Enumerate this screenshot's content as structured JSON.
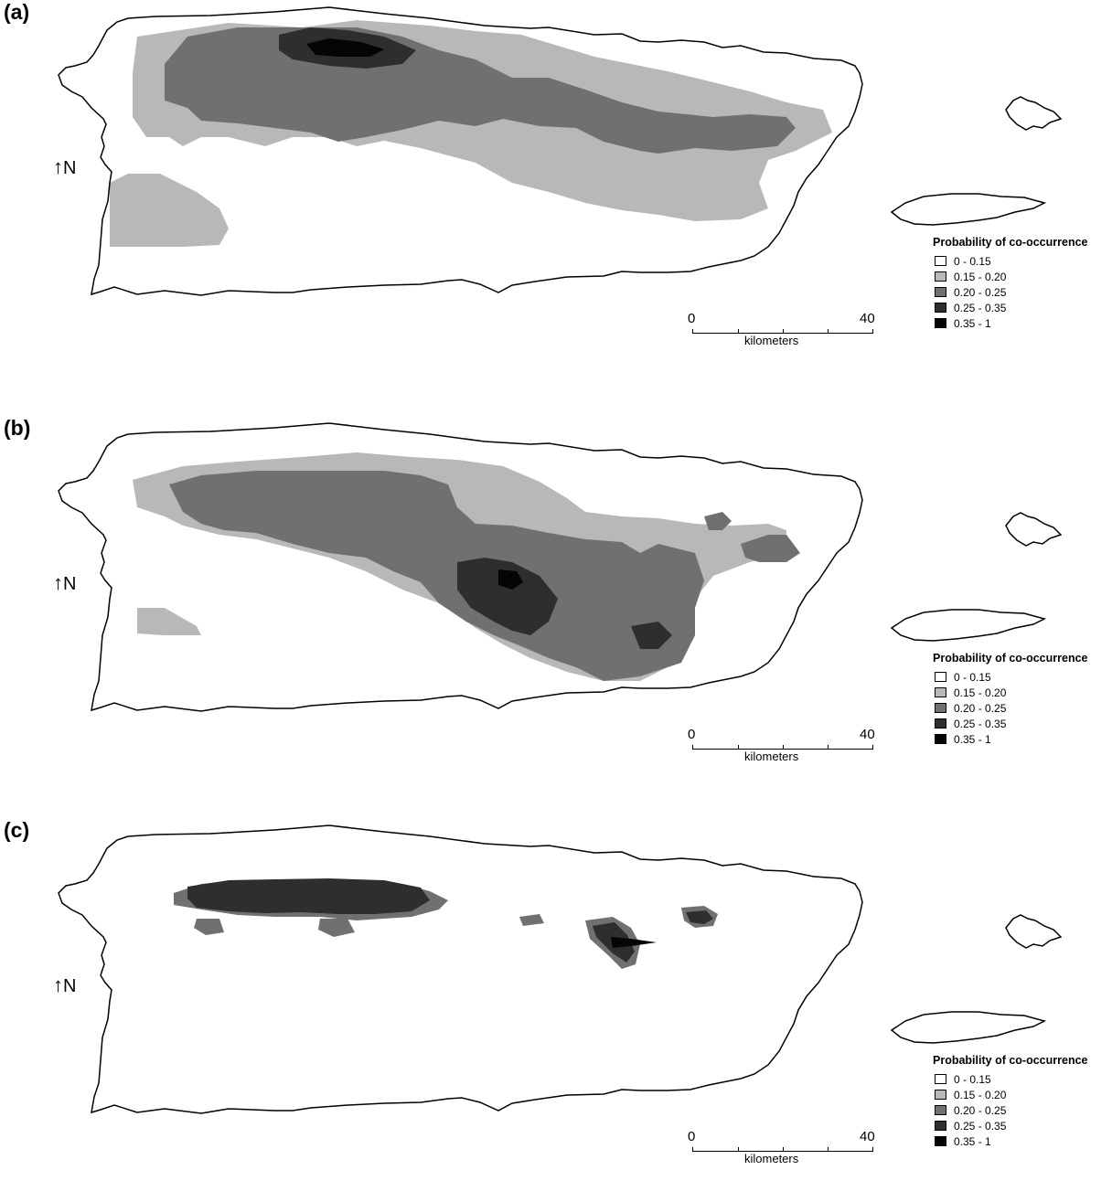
{
  "panels": [
    {
      "label": "(a)"
    },
    {
      "label": "(b)"
    },
    {
      "label": "(c)"
    }
  ],
  "north_label": "N",
  "north_arrow": "↑",
  "legend": {
    "title": "Probability of co-occurrence",
    "classes": [
      {
        "range": "0 - 0.15",
        "color": "#ffffff"
      },
      {
        "range": "0.15 - 0.20",
        "color": "#b8b8b8"
      },
      {
        "range": "0.20 - 0.25",
        "color": "#707070"
      },
      {
        "range": "0.25 - 0.35",
        "color": "#2e2e2e"
      },
      {
        "range": "0.35 - 1",
        "color": "#050505"
      }
    ]
  },
  "scale": {
    "min": "0",
    "max": "40",
    "unit": "kilometers"
  }
}
